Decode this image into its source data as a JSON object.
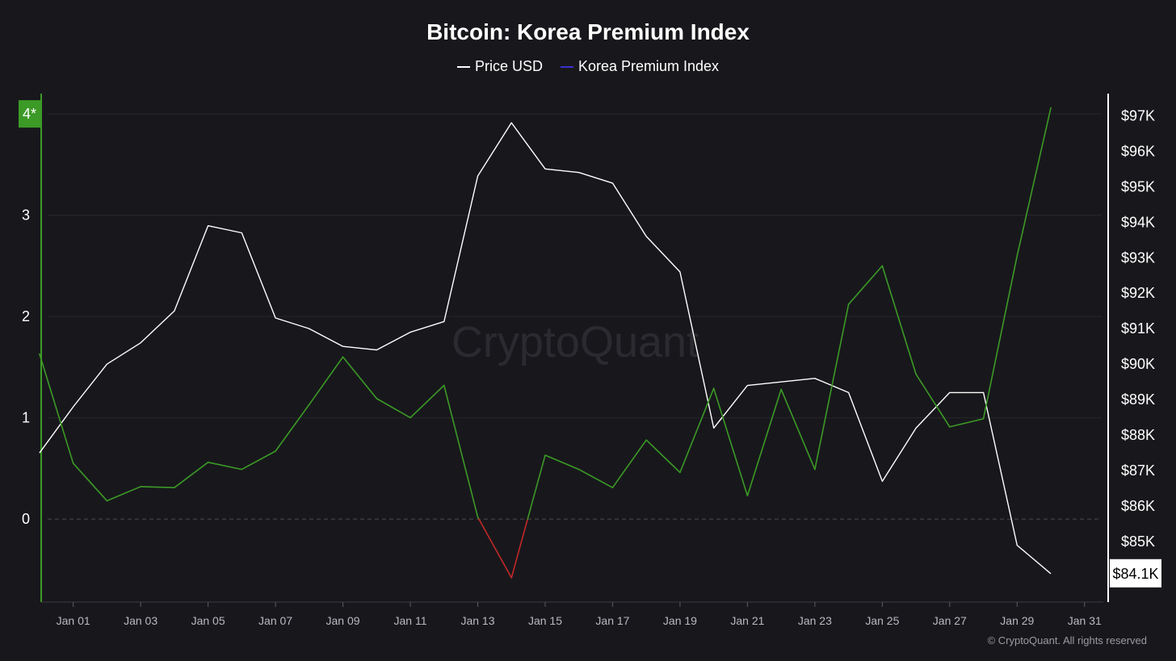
{
  "chart_data": {
    "type": "line",
    "title": "Bitcoin: Korea Premium Index",
    "legend": [
      "Price USD",
      "Korea Premium Index"
    ],
    "legend_colors": [
      "#ffffff",
      "#3b2fd0"
    ],
    "x_labels": [
      "Jan 01",
      "Jan 03",
      "Jan 05",
      "Jan 07",
      "Jan 09",
      "Jan 11",
      "Jan 13",
      "Jan 15",
      "Jan 17",
      "Jan 19",
      "Jan 21",
      "Jan 23",
      "Jan 25",
      "Jan 27",
      "Jan 29",
      "Jan 31"
    ],
    "x_label_days": [
      1,
      3,
      5,
      7,
      9,
      11,
      13,
      15,
      17,
      19,
      21,
      23,
      25,
      27,
      29,
      31
    ],
    "x_range": [
      0.05,
      31.7
    ],
    "y_left_ticks": [
      0,
      1,
      2,
      3
    ],
    "y_left_top_marker": "4*",
    "y_left_range": [
      -0.82,
      4.2
    ],
    "y_right_ticks": [
      {
        "value": 85,
        "label": "$85K"
      },
      {
        "value": 86,
        "label": "$86K"
      },
      {
        "value": 87,
        "label": "$87K"
      },
      {
        "value": 88,
        "label": "$88K"
      },
      {
        "value": 89,
        "label": "$89K"
      },
      {
        "value": 90,
        "label": "$90K"
      },
      {
        "value": 91,
        "label": "$91K"
      },
      {
        "value": 92,
        "label": "$92K"
      },
      {
        "value": 93,
        "label": "$93K"
      },
      {
        "value": 94,
        "label": "$94K"
      },
      {
        "value": 95,
        "label": "$95K"
      },
      {
        "value": 96,
        "label": "$96K"
      },
      {
        "value": 97,
        "label": "$97K"
      }
    ],
    "y_right_range": [
      83.3,
      97.62
    ],
    "current_price_label": "$84.1K",
    "current_price_value": 84.1,
    "series": [
      {
        "name": "Price USD",
        "color": "#ffffff",
        "axis": "right",
        "x": [
          0,
          1,
          2,
          3,
          4,
          5,
          6,
          7,
          8,
          9,
          10,
          11,
          12,
          13,
          14,
          15,
          16,
          17,
          18,
          19,
          20,
          21,
          22,
          23,
          24,
          25,
          26,
          27,
          28,
          29,
          30
        ],
        "values": [
          87.5,
          88.8,
          90.0,
          90.6,
          91.5,
          93.9,
          93.7,
          91.3,
          91.0,
          90.5,
          90.4,
          90.9,
          91.2,
          95.3,
          96.8,
          95.5,
          95.4,
          95.1,
          93.6,
          92.6,
          88.2,
          89.4,
          89.5,
          89.6,
          89.2,
          86.7,
          88.2,
          89.2,
          89.2,
          84.9,
          84.1
        ]
      },
      {
        "name": "Korea Premium Index",
        "color_positive": "#3c9a26",
        "color_negative": "#c42828",
        "axis": "left",
        "x": [
          0,
          1,
          2,
          3,
          4,
          5,
          6,
          7,
          8,
          9,
          10,
          11,
          12,
          13,
          14,
          15,
          16,
          17,
          18,
          19,
          20,
          21,
          22,
          23,
          24,
          25,
          26,
          27,
          28,
          29,
          30
        ],
        "values": [
          1.63,
          0.55,
          0.18,
          0.32,
          0.31,
          0.56,
          0.49,
          0.67,
          1.13,
          1.6,
          1.19,
          1.0,
          1.32,
          0.02,
          -0.58,
          0.63,
          0.49,
          0.31,
          0.78,
          0.46,
          1.29,
          0.23,
          1.28,
          0.49,
          2.12,
          2.5,
          1.43,
          0.91,
          0.99,
          2.6,
          4.06
        ]
      }
    ],
    "watermark": "CryptoQuant"
  },
  "copyright": "© CryptoQuant. All rights reserved"
}
